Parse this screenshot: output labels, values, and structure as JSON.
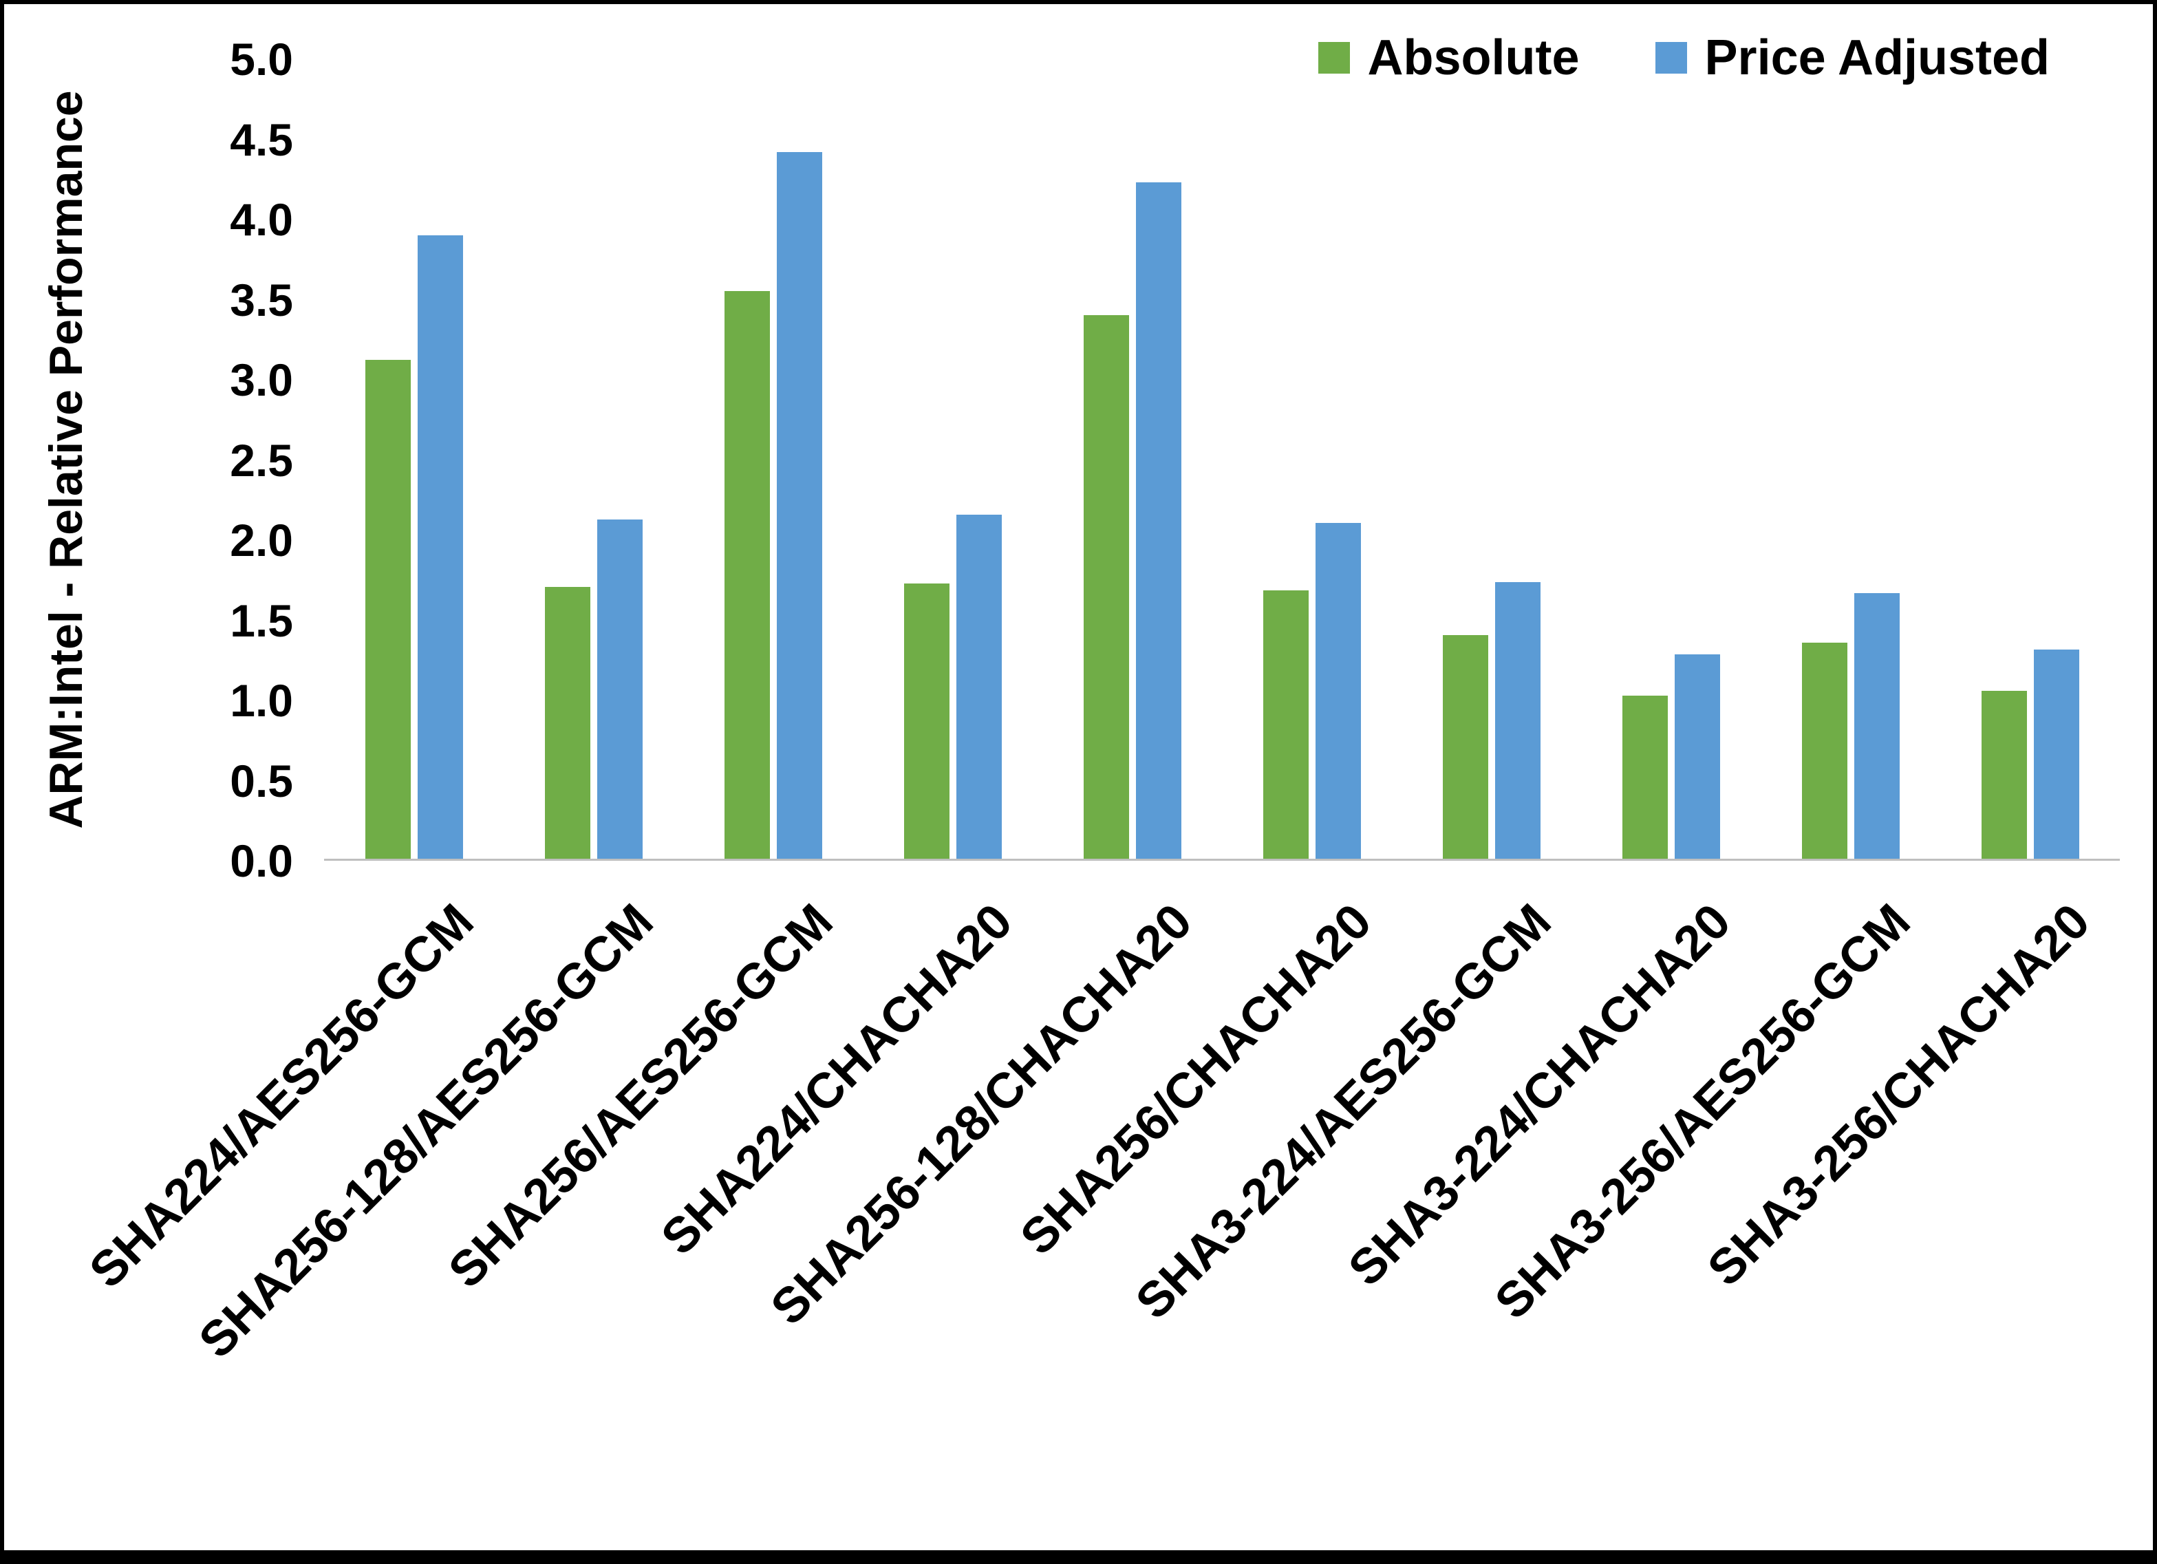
{
  "figure": {
    "y_axis_title": "ARM:Intel - Relative Performance"
  },
  "chart_data": {
    "type": "bar",
    "title": "",
    "xlabel": "",
    "ylabel": "ARM:Intel - Relative Performance",
    "ylim": [
      0,
      5
    ],
    "ytick_step": 0.5,
    "yticks": [
      "5.0",
      "4.5",
      "4.0",
      "3.5",
      "3.0",
      "2.5",
      "2.0",
      "1.5",
      "1.0",
      "0.5",
      "0.0"
    ],
    "grid": false,
    "legend_position": "top-right",
    "categories": [
      "SHA224/AES256-GCM",
      "SHA256-128/AES256-GCM",
      "SHA256/AES256-GCM",
      "SHA224/CHACHA20",
      "SHA256-128/CHACHA20",
      "SHA256/CHACHA20",
      "SHA3-224/AES256-GCM",
      "SHA3-224/CHACHA20",
      "SHA3-256/AES256-GCM",
      "SHA3-256/CHACHA20"
    ],
    "series": [
      {
        "name": "Absolute",
        "color": "#70AD47",
        "values": [
          3.12,
          1.7,
          3.55,
          1.72,
          3.4,
          1.68,
          1.4,
          1.02,
          1.35,
          1.05
        ]
      },
      {
        "name": "Price Adjusted",
        "color": "#5B9BD5",
        "values": [
          3.9,
          2.12,
          4.42,
          2.15,
          4.23,
          2.1,
          1.73,
          1.28,
          1.66,
          1.31
        ]
      }
    ]
  }
}
